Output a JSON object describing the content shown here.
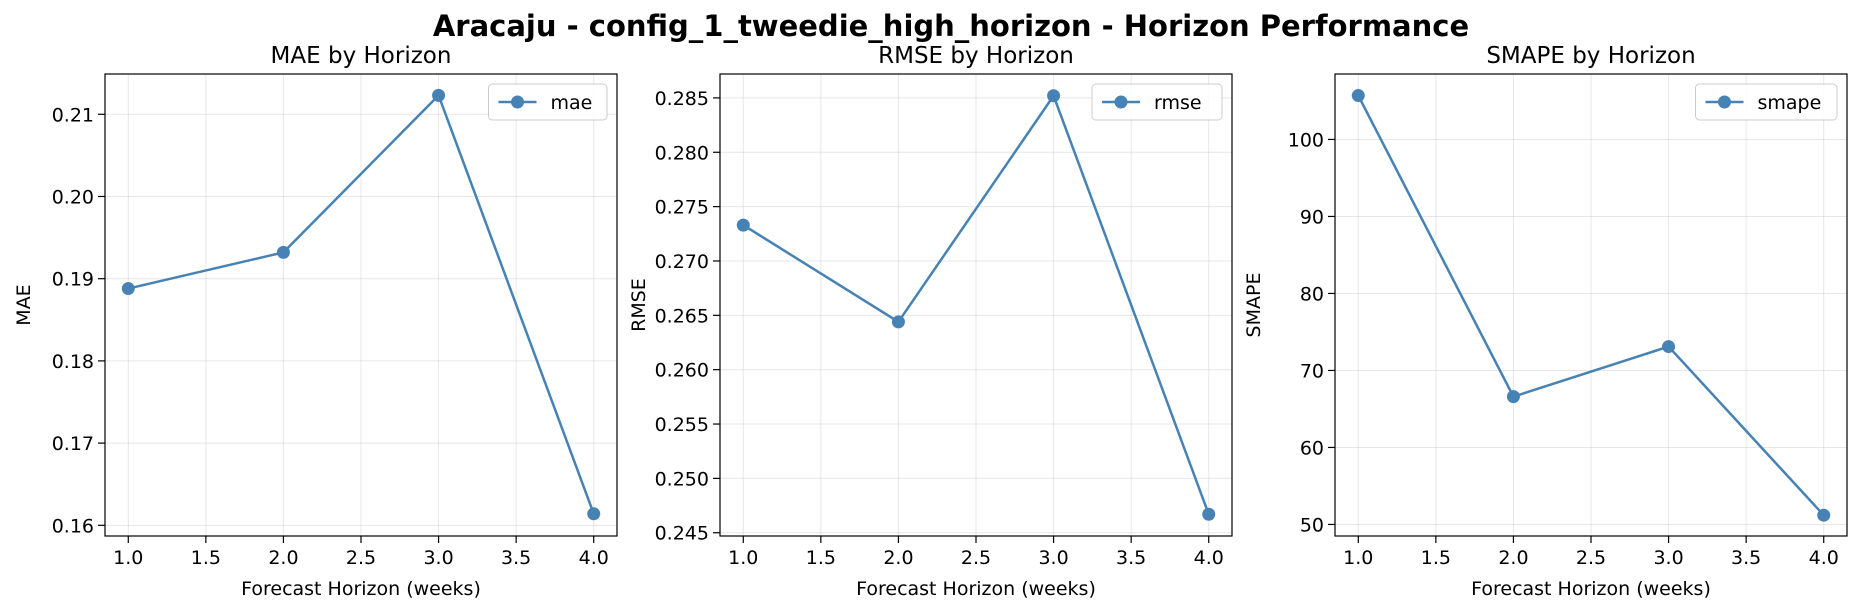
{
  "figure": {
    "title": "Aracaju - config_1_tweedie_high_horizon - Horizon Performance"
  },
  "colors": {
    "line": "#4682b4",
    "grid": "#b0b0b0",
    "axis": "#000000",
    "legend_border": "#cccccc"
  },
  "chart_data": [
    {
      "type": "line",
      "title": "MAE by Horizon",
      "xlabel": "Forecast Horizon (weeks)",
      "ylabel": "MAE",
      "x": [
        1.0,
        2.0,
        3.0,
        4.0
      ],
      "series": [
        {
          "name": "mae",
          "values": [
            0.1888,
            0.1932,
            0.2123,
            0.1614
          ],
          "marker": "circle"
        }
      ],
      "xlim": [
        0.85,
        4.15
      ],
      "ylim": [
        0.1587,
        0.2149
      ],
      "xticks": [
        1.0,
        1.5,
        2.0,
        2.5,
        3.0,
        3.5,
        4.0
      ],
      "xtick_labels": [
        "1.0",
        "1.5",
        "2.0",
        "2.5",
        "3.0",
        "3.5",
        "4.0"
      ],
      "yticks": [
        0.16,
        0.17,
        0.18,
        0.19,
        0.2,
        0.21
      ],
      "ytick_labels": [
        "0.16",
        "0.17",
        "0.18",
        "0.19",
        "0.20",
        "0.21"
      ],
      "grid": true,
      "legend_position": "top-right"
    },
    {
      "type": "line",
      "title": "RMSE by Horizon",
      "xlabel": "Forecast Horizon (weeks)",
      "ylabel": "RMSE",
      "x": [
        1.0,
        2.0,
        3.0,
        4.0
      ],
      "series": [
        {
          "name": "rmse",
          "values": [
            0.2733,
            0.2644,
            0.2852,
            0.2467
          ],
          "marker": "circle"
        }
      ],
      "xlim": [
        0.85,
        4.15
      ],
      "ylim": [
        0.2447,
        0.2872
      ],
      "xticks": [
        1.0,
        1.5,
        2.0,
        2.5,
        3.0,
        3.5,
        4.0
      ],
      "xtick_labels": [
        "1.0",
        "1.5",
        "2.0",
        "2.5",
        "3.0",
        "3.5",
        "4.0"
      ],
      "yticks": [
        0.245,
        0.25,
        0.255,
        0.26,
        0.265,
        0.27,
        0.275,
        0.28,
        0.285
      ],
      "ytick_labels": [
        "0.245",
        "0.250",
        "0.255",
        "0.260",
        "0.265",
        "0.270",
        "0.275",
        "0.280",
        "0.285"
      ],
      "grid": true,
      "legend_position": "top-right"
    },
    {
      "type": "line",
      "title": "SMAPE by Horizon",
      "xlabel": "Forecast Horizon (weeks)",
      "ylabel": "SMAPE",
      "x": [
        1.0,
        2.0,
        3.0,
        4.0
      ],
      "series": [
        {
          "name": "smape",
          "values": [
            105.7,
            66.6,
            73.1,
            51.2
          ],
          "marker": "circle"
        }
      ],
      "xlim": [
        0.85,
        4.15
      ],
      "ylim": [
        48.5,
        108.5
      ],
      "xticks": [
        1.0,
        1.5,
        2.0,
        2.5,
        3.0,
        3.5,
        4.0
      ],
      "xtick_labels": [
        "1.0",
        "1.5",
        "2.0",
        "2.5",
        "3.0",
        "3.5",
        "4.0"
      ],
      "yticks": [
        50,
        60,
        70,
        80,
        90,
        100
      ],
      "ytick_labels": [
        "50",
        "60",
        "70",
        "80",
        "90",
        "100"
      ],
      "grid": true,
      "legend_position": "top-right"
    }
  ]
}
